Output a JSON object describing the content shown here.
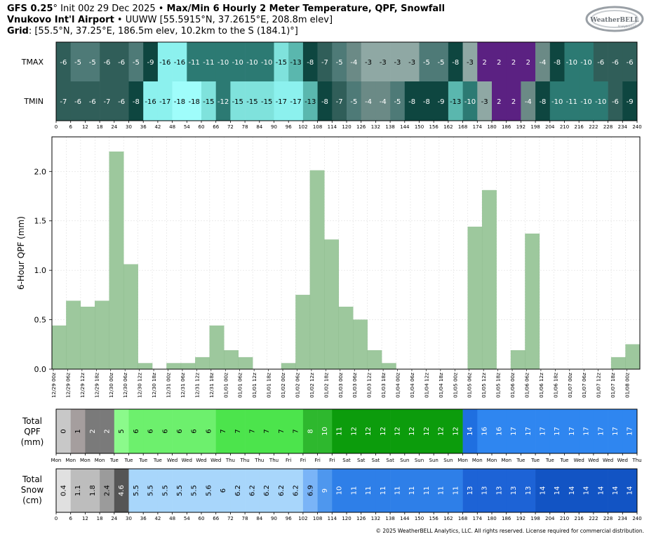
{
  "header": {
    "line1_bold": "GFS 0.25",
    "line1_deg": "°",
    "line1_a": " Init 00z 29 Dec 2025 • ",
    "line1_title": "Max/Min 6 Hourly 2 Meter Temperature, QPF, Snowfall",
    "line2_bold": "Vnukovo Int'l Airport",
    "line2_rest": " • UUWW [55.5915°N, 37.2615°E, 208.8m elev]",
    "line3_bold": "Grid",
    "line3_rest": ": [55.5°N, 37.25°E, 186.5m elev, 10.2km to the S (184.1)°]"
  },
  "logo": {
    "text": "WeatherBELL",
    "sub": "Analytics LLC"
  },
  "copyright": "© 2025 WeatherBELL Analytics, LLC. All rights reserved. License required for commercial distribution.",
  "chart_data": [
    {
      "type": "heatmap",
      "rows": [
        "TMAX",
        "TMIN"
      ],
      "x_ticks": [
        0,
        6,
        12,
        18,
        24,
        30,
        36,
        42,
        48,
        54,
        60,
        66,
        72,
        78,
        84,
        90,
        96,
        102,
        108,
        114,
        120,
        126,
        132,
        138,
        144,
        150,
        156,
        162,
        168,
        174,
        180,
        186,
        192,
        198,
        204,
        210,
        216,
        222,
        228,
        234,
        240
      ],
      "tmax": [
        -6,
        -5,
        -5,
        -6,
        -6,
        -5,
        -9,
        -16,
        -16,
        -11,
        -11,
        -10,
        -10,
        -10,
        -10,
        -15,
        -13,
        -8,
        -7,
        -5,
        -4,
        -3,
        -3,
        -3,
        -3,
        -5,
        -5,
        -8,
        -3,
        2,
        2,
        2,
        2,
        -4,
        -8,
        -10,
        -10,
        -6,
        -6,
        -6
      ],
      "tmin": [
        -7,
        -6,
        -6,
        -7,
        -6,
        -8,
        -16,
        -17,
        -18,
        -18,
        -15,
        -12,
        -15,
        -15,
        -15,
        -17,
        -17,
        -13,
        -8,
        -7,
        -5,
        -4,
        -4,
        -5,
        -8,
        -8,
        -9,
        -13,
        -10,
        -3,
        2,
        2,
        -4,
        -8,
        -10,
        -11,
        -10,
        -10,
        -6,
        -9
      ]
    },
    {
      "type": "bar",
      "ylabel": "6-Hour QPF (mm)",
      "ylim": [
        0,
        2.35
      ],
      "y_ticks": [
        "0.0",
        "0.5",
        "1.0",
        "1.5",
        "2.0"
      ],
      "categories": [
        "12/29 00z",
        "12/29 06z",
        "12/29 12z",
        "12/29 18z",
        "12/30 00z",
        "12/30 06z",
        "12/30 12z",
        "12/30 18z",
        "12/31 00z",
        "12/31 06z",
        "12/31 12z",
        "12/31 18z",
        "01/01 00z",
        "01/01 06z",
        "01/01 12z",
        "01/01 18z",
        "01/02 00z",
        "01/02 06z",
        "01/02 12z",
        "01/02 18z",
        "01/03 00z",
        "01/03 06z",
        "01/03 12z",
        "01/03 18z",
        "01/04 00z",
        "01/04 06z",
        "01/04 12z",
        "01/04 18z",
        "01/05 00z",
        "01/05 06z",
        "01/05 12z",
        "01/05 18z",
        "01/06 00z",
        "01/06 06z",
        "01/06 12z",
        "01/06 18z",
        "01/07 00z",
        "01/07 06z",
        "01/07 12z",
        "01/07 18z",
        "01/08 00z"
      ],
      "values": [
        0.44,
        0.69,
        0.63,
        0.69,
        2.2,
        1.06,
        0.06,
        0,
        0.06,
        0.06,
        0.12,
        0.44,
        0.19,
        0.12,
        0,
        0,
        0.06,
        0.75,
        2.01,
        1.31,
        0.63,
        0.5,
        0.19,
        0.06,
        0,
        0,
        0,
        0,
        0,
        1.44,
        1.81,
        0,
        0.19,
        1.37,
        0,
        0,
        0,
        0,
        0,
        0.12,
        0.25
      ]
    },
    {
      "type": "table",
      "ylabel": [
        "Total",
        "QPF",
        "(mm)"
      ],
      "values": [
        "0",
        "1",
        "2",
        "2",
        "5",
        "6",
        "6",
        "6",
        "6",
        "6",
        "6",
        "7",
        "7",
        "7",
        "7",
        "7",
        "7",
        "8",
        "10",
        "11",
        "12",
        "12",
        "12",
        "12",
        "12",
        "12",
        "12",
        "12",
        "14",
        "16",
        "16",
        "17",
        "17",
        "17",
        "17",
        "17",
        "17",
        "17",
        "17",
        "17"
      ],
      "day_labels": [
        "Mon",
        "Mon",
        "Mon",
        "Mon",
        "Tue",
        "Tue",
        "Tue",
        "Tue",
        "Wed",
        "Wed",
        "Wed",
        "Wed",
        "Thu",
        "Thu",
        "Thu",
        "Thu",
        "Fri",
        "Fri",
        "Fri",
        "Fri",
        "Sat",
        "Sat",
        "Sat",
        "Sat",
        "Sun",
        "Sun",
        "Sun",
        "Sun",
        "Mon",
        "Mon",
        "Mon",
        "Mon",
        "Tue",
        "Tue",
        "Tue",
        "Tue",
        "Wed",
        "Wed",
        "Wed",
        "Wed",
        "Thu"
      ]
    },
    {
      "type": "table",
      "ylabel": [
        "Total",
        "Snow",
        "(cm)"
      ],
      "values": [
        "0.4",
        "1.1",
        "1.8",
        "2.4",
        "4.6",
        "5.5",
        "5.5",
        "5.5",
        "5.5",
        "5.5",
        "5.6",
        "6",
        "6.2",
        "6.2",
        "6.2",
        "6.2",
        "6.2",
        "6.9",
        "9",
        "10",
        "11",
        "11",
        "11",
        "11",
        "11",
        "11",
        "11",
        "11",
        "13",
        "13",
        "13",
        "13",
        "13",
        "14",
        "14",
        "14",
        "14",
        "14",
        "14",
        "14"
      ],
      "x_ticks": [
        0,
        6,
        12,
        18,
        24,
        30,
        36,
        42,
        48,
        54,
        60,
        66,
        72,
        78,
        84,
        90,
        96,
        102,
        108,
        114,
        120,
        126,
        132,
        138,
        144,
        150,
        156,
        162,
        168,
        174,
        180,
        186,
        192,
        198,
        204,
        210,
        216,
        222,
        228,
        234,
        240
      ]
    }
  ],
  "colors": {
    "qpf_bar": "#9dc89d",
    "grid": "#e0e0e0",
    "panel_border": "#000000"
  }
}
